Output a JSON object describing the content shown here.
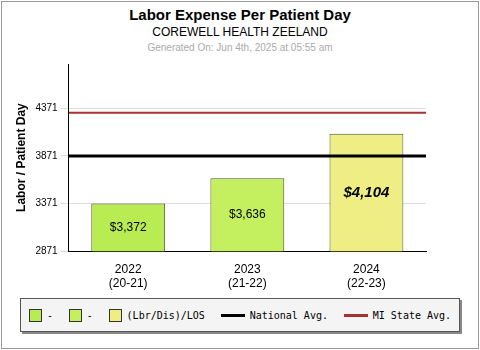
{
  "chart_data": {
    "type": "bar",
    "title": "Labor Expense Per Patient Day",
    "subtitle": "COREWELL HEALTH ZEELAND",
    "annotations": [
      "Generated On: Jun 4th, 2025 at 05:55 am"
    ],
    "ylabel": "Labor / Patient Day",
    "categories": [
      [
        "2022",
        "(20-21)"
      ],
      [
        "2023",
        "(21-22)"
      ],
      [
        "2024",
        "(22-23)"
      ]
    ],
    "series": [
      {
        "name": "-",
        "color": "#b8ec52",
        "values": [
          3372,
          null,
          null
        ],
        "value_labels": [
          "$3,372",
          null,
          null
        ]
      },
      {
        "name": "-",
        "color": "#c4f060",
        "values": [
          null,
          3636,
          null
        ],
        "value_labels": [
          null,
          "$3,636",
          null
        ]
      },
      {
        "name": "(Lbr/Dis)/LOS",
        "color": "#eeee84",
        "values": [
          null,
          null,
          4104
        ],
        "value_labels": [
          null,
          null,
          "$4,104"
        ]
      }
    ],
    "reference_lines": [
      {
        "name": "National Avg.",
        "value": 3871,
        "color": "#000000"
      },
      {
        "name": "MI State Avg.",
        "value": 4325,
        "color": "#a83232"
      }
    ],
    "stacked": true,
    "data_labels": true,
    "legend": "bottom",
    "ylim": [
      2871,
      4837
    ],
    "yticks": [
      2871,
      3371,
      3871,
      4371
    ],
    "grid": true
  }
}
